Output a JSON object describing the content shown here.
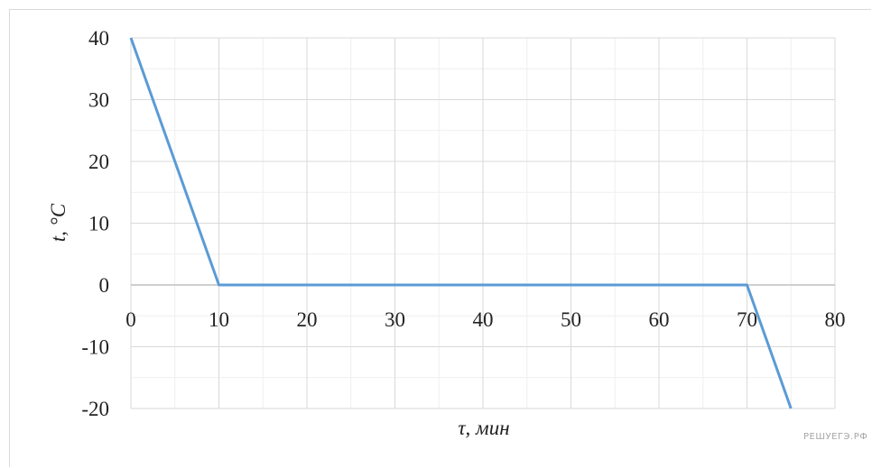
{
  "chart_data": {
    "type": "line",
    "title": "",
    "xlabel": "τ, мин",
    "ylabel": "t, °C",
    "xlim": [
      0,
      80
    ],
    "ylim": [
      -20,
      40
    ],
    "x_ticks": [
      "0",
      "10",
      "20",
      "30",
      "40",
      "50",
      "60",
      "70",
      "80"
    ],
    "y_ticks": [
      "40",
      "30",
      "20",
      "10",
      "0",
      "-10",
      "-20"
    ],
    "grid": true,
    "series": [
      {
        "x": [
          0,
          10,
          70,
          75
        ],
        "y": [
          40,
          0,
          0,
          -20
        ],
        "color": "#5b9bd5"
      }
    ]
  },
  "watermark": "РЕШУЕГЭ.РФ"
}
